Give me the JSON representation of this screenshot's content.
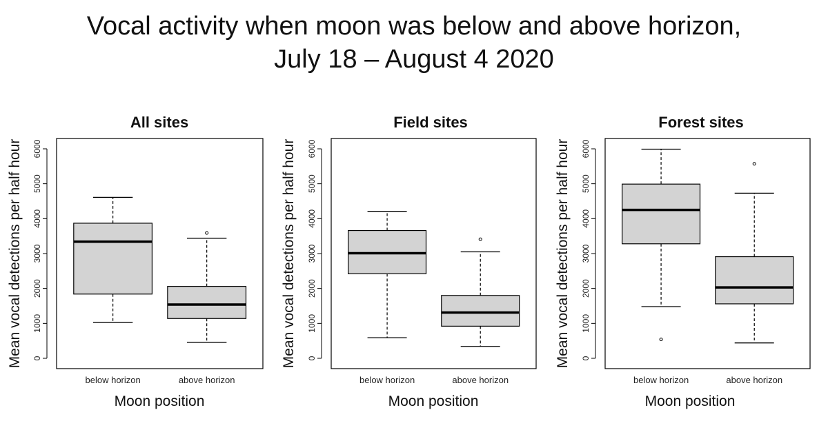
{
  "title_line1": "Vocal activity when moon was below and above horizon,",
  "title_line2": "July 18 – August 4 2020",
  "chart_data": [
    {
      "type": "boxplot",
      "title": "All sites",
      "xlabel": "Moon position",
      "ylabel": "Mean vocal detections per half hour",
      "ylim": [
        0,
        6000
      ],
      "yticks": [
        "0",
        "1000",
        "2000",
        "3000",
        "4000",
        "5000",
        "6000"
      ],
      "categories": [
        "below horizon",
        "above horizon"
      ],
      "boxes": [
        {
          "name": "below horizon",
          "min": 1030,
          "q1": 1840,
          "median": 3340,
          "q3": 3870,
          "max": 4610,
          "outliers": []
        },
        {
          "name": "above horizon",
          "min": 460,
          "q1": 1140,
          "median": 1540,
          "q3": 2060,
          "max": 3440,
          "outliers": [
            3590
          ]
        }
      ]
    },
    {
      "type": "boxplot",
      "title": "Field sites",
      "xlabel": "Moon position",
      "ylabel": "Mean vocal detections per half hour",
      "ylim": [
        0,
        6000
      ],
      "yticks": [
        "0",
        "1000",
        "2000",
        "3000",
        "4000",
        "5000",
        "6000"
      ],
      "categories": [
        "below horizon",
        "above horizon"
      ],
      "boxes": [
        {
          "name": "below horizon",
          "min": 590,
          "q1": 2420,
          "median": 3010,
          "q3": 3660,
          "max": 4210,
          "outliers": []
        },
        {
          "name": "above horizon",
          "min": 340,
          "q1": 920,
          "median": 1310,
          "q3": 1800,
          "max": 3050,
          "outliers": [
            3410
          ]
        }
      ]
    },
    {
      "type": "boxplot",
      "title": "Forest sites",
      "xlabel": "Moon position",
      "ylabel": "Mean vocal detections per half hour",
      "ylim": [
        0,
        6000
      ],
      "yticks": [
        "0",
        "1000",
        "2000",
        "3000",
        "4000",
        "5000",
        "6000"
      ],
      "categories": [
        "below horizon",
        "above horizon"
      ],
      "boxes": [
        {
          "name": "below horizon",
          "min": 1480,
          "q1": 3280,
          "median": 4250,
          "q3": 4990,
          "max": 5990,
          "outliers": [
            540
          ]
        },
        {
          "name": "above horizon",
          "min": 440,
          "q1": 1560,
          "median": 2030,
          "q3": 2910,
          "max": 4730,
          "outliers": [
            5570
          ]
        }
      ]
    }
  ]
}
